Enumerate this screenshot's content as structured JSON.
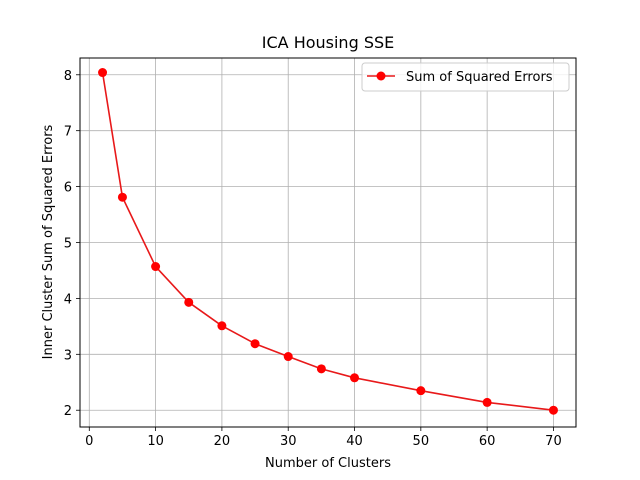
{
  "chart_data": {
    "type": "line",
    "title": "ICA Housing SSE",
    "xlabel": "Number of Clusters",
    "ylabel": "Inner Cluster Sum of Squared Errors",
    "xlim": [
      -1.4,
      73.4
    ],
    "ylim": [
      1.7,
      8.3
    ],
    "xticks": [
      0,
      10,
      20,
      30,
      40,
      50,
      60,
      70
    ],
    "yticks": [
      2,
      3,
      4,
      5,
      6,
      7,
      8
    ],
    "grid": true,
    "legend_position": "top-right",
    "series": [
      {
        "name": "Sum of Squared Errors",
        "color": "#ff0000",
        "line_color": "#e8191a",
        "marker": "circle",
        "x": [
          2,
          5,
          10,
          15,
          20,
          25,
          30,
          35,
          40,
          50,
          60,
          70
        ],
        "y": [
          8.04,
          5.81,
          4.57,
          3.93,
          3.51,
          3.19,
          2.96,
          2.74,
          2.58,
          2.35,
          2.14,
          2.0
        ]
      }
    ]
  }
}
